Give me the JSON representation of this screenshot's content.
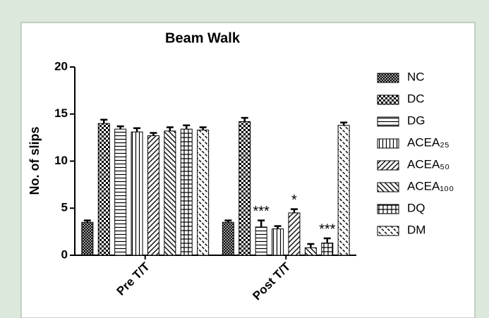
{
  "chart_data": {
    "type": "bar",
    "title": "Beam Walk",
    "ylabel": "No. of slips",
    "categories": [
      "Pre T/T",
      "Post T/T"
    ],
    "ylim": [
      0,
      20
    ],
    "yticks": [
      0,
      5,
      10,
      15,
      20
    ],
    "series": [
      {
        "name": "NC",
        "pattern": "crosshatch",
        "values": [
          3.5,
          3.5
        ],
        "errors": [
          0.2,
          0.2
        ]
      },
      {
        "name": "DC",
        "pattern": "checker",
        "values": [
          14.0,
          14.2
        ],
        "errors": [
          0.4,
          0.4
        ]
      },
      {
        "name": "DG",
        "pattern": "hlines",
        "values": [
          13.4,
          3.0
        ],
        "errors": [
          0.3,
          0.7
        ],
        "annotations": [
          null,
          "***"
        ]
      },
      {
        "name": "ACEA₂₅",
        "pattern": "vlines",
        "values": [
          13.1,
          2.8
        ],
        "errors": [
          0.4,
          0.3
        ]
      },
      {
        "name": "ACEA₅₀",
        "pattern": "diag-right",
        "values": [
          12.7,
          4.5
        ],
        "errors": [
          0.3,
          0.4
        ],
        "annotations": [
          null,
          "*"
        ]
      },
      {
        "name": "ACEA₁₀₀",
        "pattern": "diag-left",
        "values": [
          13.2,
          0.8
        ],
        "errors": [
          0.4,
          0.4
        ]
      },
      {
        "name": "DQ",
        "pattern": "grid",
        "values": [
          13.4,
          1.3
        ],
        "errors": [
          0.4,
          0.5
        ],
        "annotations": [
          null,
          "***"
        ]
      },
      {
        "name": "DM",
        "pattern": "diag-dashed",
        "values": [
          13.3,
          13.8
        ],
        "errors": [
          0.3,
          0.3
        ]
      }
    ]
  }
}
